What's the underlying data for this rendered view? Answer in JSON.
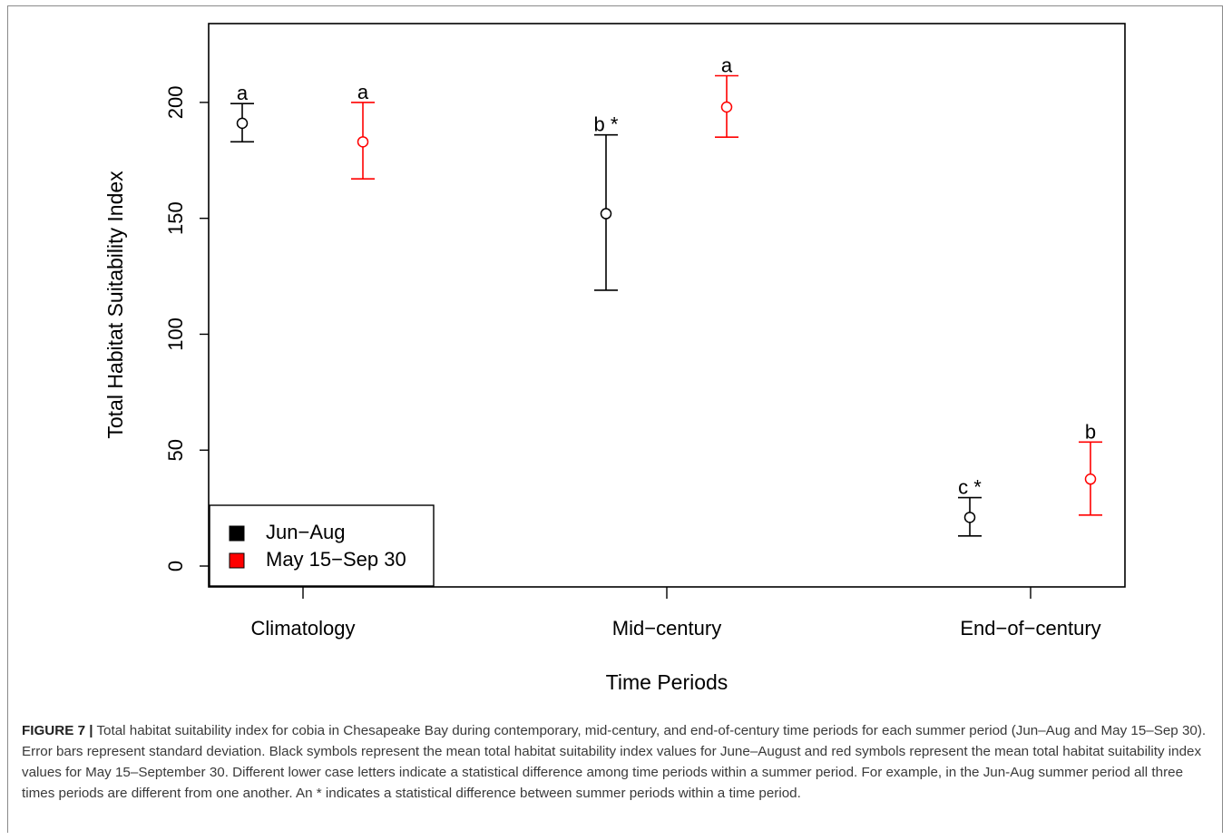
{
  "chart_data": {
    "type": "scatter",
    "xlabel": "Time Periods",
    "ylabel": "Total Habitat Suitability Index",
    "categories": [
      "Climatology",
      "Mid−century",
      "End−of−century"
    ],
    "yticks": [
      0,
      50,
      100,
      150,
      200
    ],
    "ylim": [
      -9,
      234
    ],
    "grid": false,
    "legend_position": "bottom-left",
    "series": [
      {
        "name": "Jun−Aug",
        "color": "#000000",
        "mean": [
          191,
          152,
          21
        ],
        "lower": [
          183,
          119,
          13
        ],
        "upper": [
          199.5,
          186,
          29.5
        ],
        "labels": [
          "a",
          "b",
          "c"
        ],
        "stars": [
          "",
          "*",
          "*"
        ]
      },
      {
        "name": "May 15−Sep 30",
        "color": "#ff0000",
        "mean": [
          183,
          198,
          37.5
        ],
        "lower": [
          167,
          185,
          22
        ],
        "upper": [
          200,
          211.5,
          53.5
        ],
        "labels": [
          "a",
          "a",
          "b"
        ],
        "stars": [
          "",
          "",
          ""
        ]
      }
    ]
  },
  "caption": {
    "label": "FIGURE 7 |",
    "text": "Total habitat suitability index for cobia in Chesapeake Bay during contemporary, mid-century, and end-of-century time periods for each summer period (Jun–Aug and May 15–Sep 30). Error bars represent standard deviation. Black symbols represent the mean total habitat suitability index values for June–August and red symbols represent the mean total habitat suitability index values for May 15–September 30. Different lower case letters indicate a statistical difference among time periods within a summer period. For example, in the Jun-Aug summer period all three times periods are different from one another. An * indicates a statistical difference between summer periods within a time period."
  }
}
